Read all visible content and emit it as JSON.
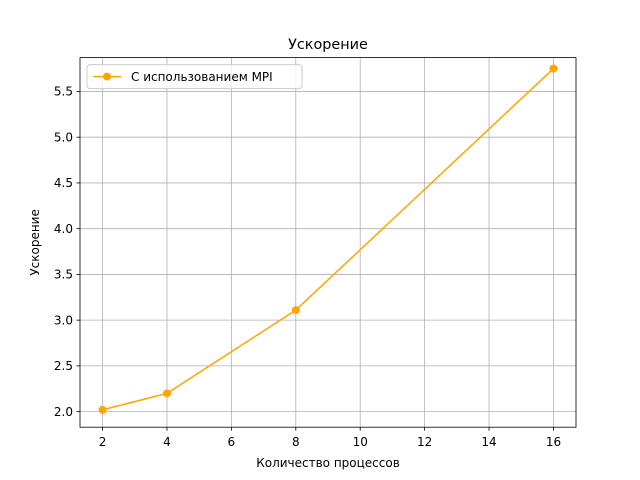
{
  "chart_data": {
    "type": "line",
    "title": "Ускорение",
    "xlabel": "Количество процессов",
    "ylabel": "Ускорение",
    "xlim": [
      1.3,
      16.7
    ],
    "ylim": [
      1.83,
      5.87
    ],
    "xticks": [
      2,
      4,
      6,
      8,
      10,
      12,
      14,
      16
    ],
    "yticks": [
      2.0,
      2.5,
      3.0,
      3.5,
      4.0,
      4.5,
      5.0,
      5.5
    ],
    "ytick_labels": [
      "2.0",
      "2.5",
      "3.0",
      "3.5",
      "4.0",
      "4.5",
      "5.0",
      "5.5"
    ],
    "grid": true,
    "legend_position": "upper-left",
    "series": [
      {
        "name": "С использованием MPI",
        "color": "#ffa500",
        "marker": "circle",
        "x": [
          2,
          4,
          8,
          16
        ],
        "y": [
          2.02,
          2.2,
          3.11,
          5.75
        ]
      }
    ]
  }
}
